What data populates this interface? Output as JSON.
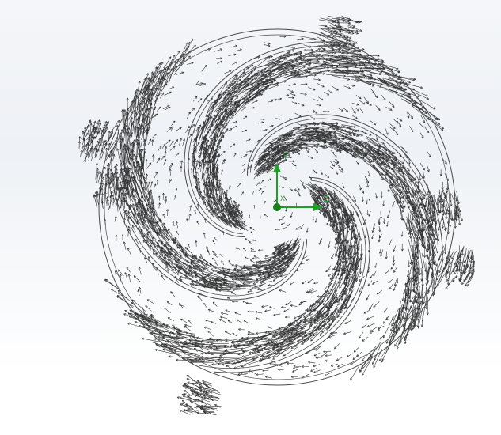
{
  "viewport": {
    "background_top": "#f4f6f9",
    "background_bottom": "#ffffff"
  },
  "model": {
    "vector_color": "#000000",
    "outline_color": "#4a4a4a",
    "arms": 4
  },
  "triad": {
    "y_label": "Y",
    "z_label": "Z",
    "x_label": "X",
    "axis_color": "#1f9e2a",
    "origin_color": "#1a7d1a"
  }
}
